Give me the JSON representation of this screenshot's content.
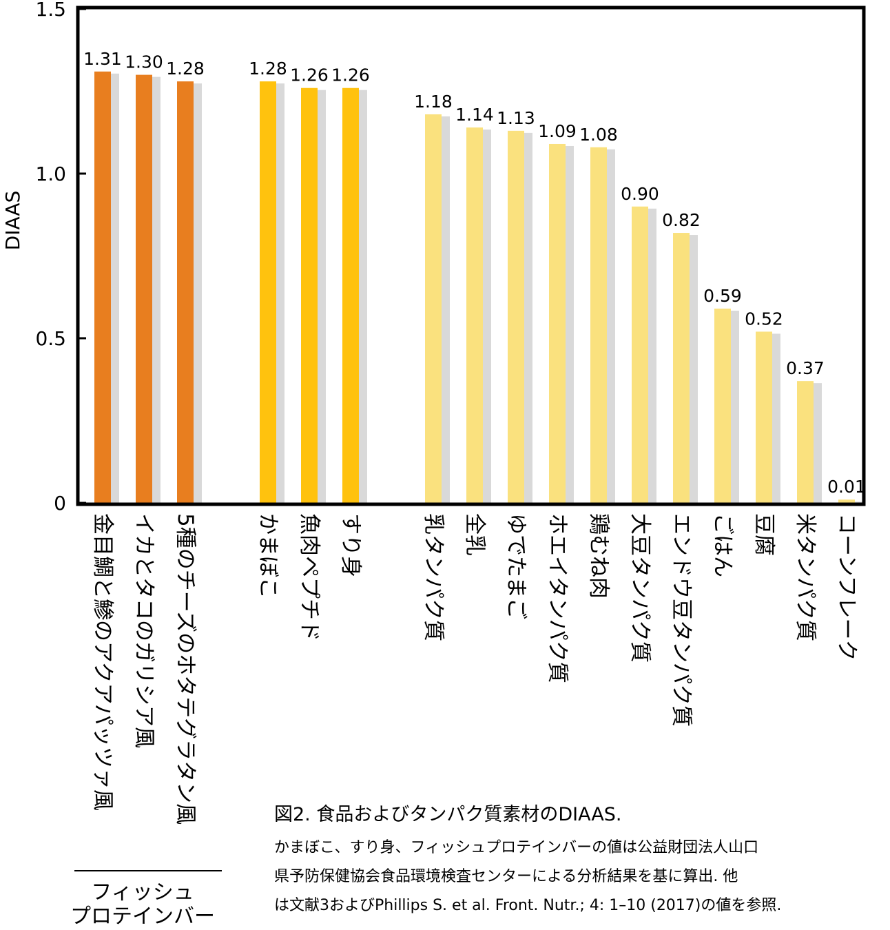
{
  "chart_data": {
    "type": "bar",
    "ylabel": "DIAAS",
    "ylim": [
      0,
      1.5
    ],
    "yticks": [
      "0",
      "0.5",
      "1.0",
      "1.5"
    ],
    "ytick_values": [
      0,
      0.5,
      1.0,
      1.5
    ],
    "grid": false,
    "groups": [
      {
        "label": "フィッシュ\nプロテインバー",
        "color": "#E87E1F",
        "categories": [
          "金目鯛と鯵のアクアパッツァ風",
          "イカとタコのガリシア風",
          "5種のチーズのホタテグラタン風"
        ],
        "values": [
          1.31,
          1.3,
          1.28
        ],
        "value_labels": [
          "1.31",
          "1.30",
          "1.28"
        ]
      },
      {
        "label": "",
        "color": "#FFC20E",
        "categories": [
          "かまぼこ",
          "魚肉ペプチド",
          "すり身"
        ],
        "values": [
          1.28,
          1.26,
          1.26
        ],
        "value_labels": [
          "1.28",
          "1.26",
          "1.26"
        ]
      },
      {
        "label": "",
        "color": "#FAE17E",
        "categories": [
          "乳タンパク質",
          "全乳",
          "ゆでたまご",
          "ホエイタンパク質",
          "鶏むね肉",
          "大豆タンパク質",
          "エンドウ豆タンパク質",
          "ごはん",
          "豆腐",
          "米タンパク質",
          "コーンフレーク"
        ],
        "values": [
          1.18,
          1.14,
          1.13,
          1.09,
          1.08,
          0.9,
          0.82,
          0.59,
          0.52,
          0.37,
          0.01
        ],
        "value_labels": [
          "1.18",
          "1.14",
          "1.13",
          "1.09",
          "1.08",
          "0.90",
          "0.82",
          "0.59",
          "0.52",
          "0.37",
          "0.01"
        ]
      }
    ],
    "shadow_color": "#D9D9D9"
  },
  "group_label_lines": [
    "フィッシュ",
    "プロテインバー"
  ],
  "caption": {
    "title": "図2. 食品およびタンパク質素材のDIAAS.",
    "lines": [
      "かまぼこ、すり身、フィッシュプロテインバーの値は公益財団法人山口",
      "県予防保健協会食品環境検査センターによる分析結果を基に算出. 他",
      "は文献3およびPhillips S. et al. Front. Nutr.; 4: 1–10 (2017)の値を参照."
    ]
  }
}
